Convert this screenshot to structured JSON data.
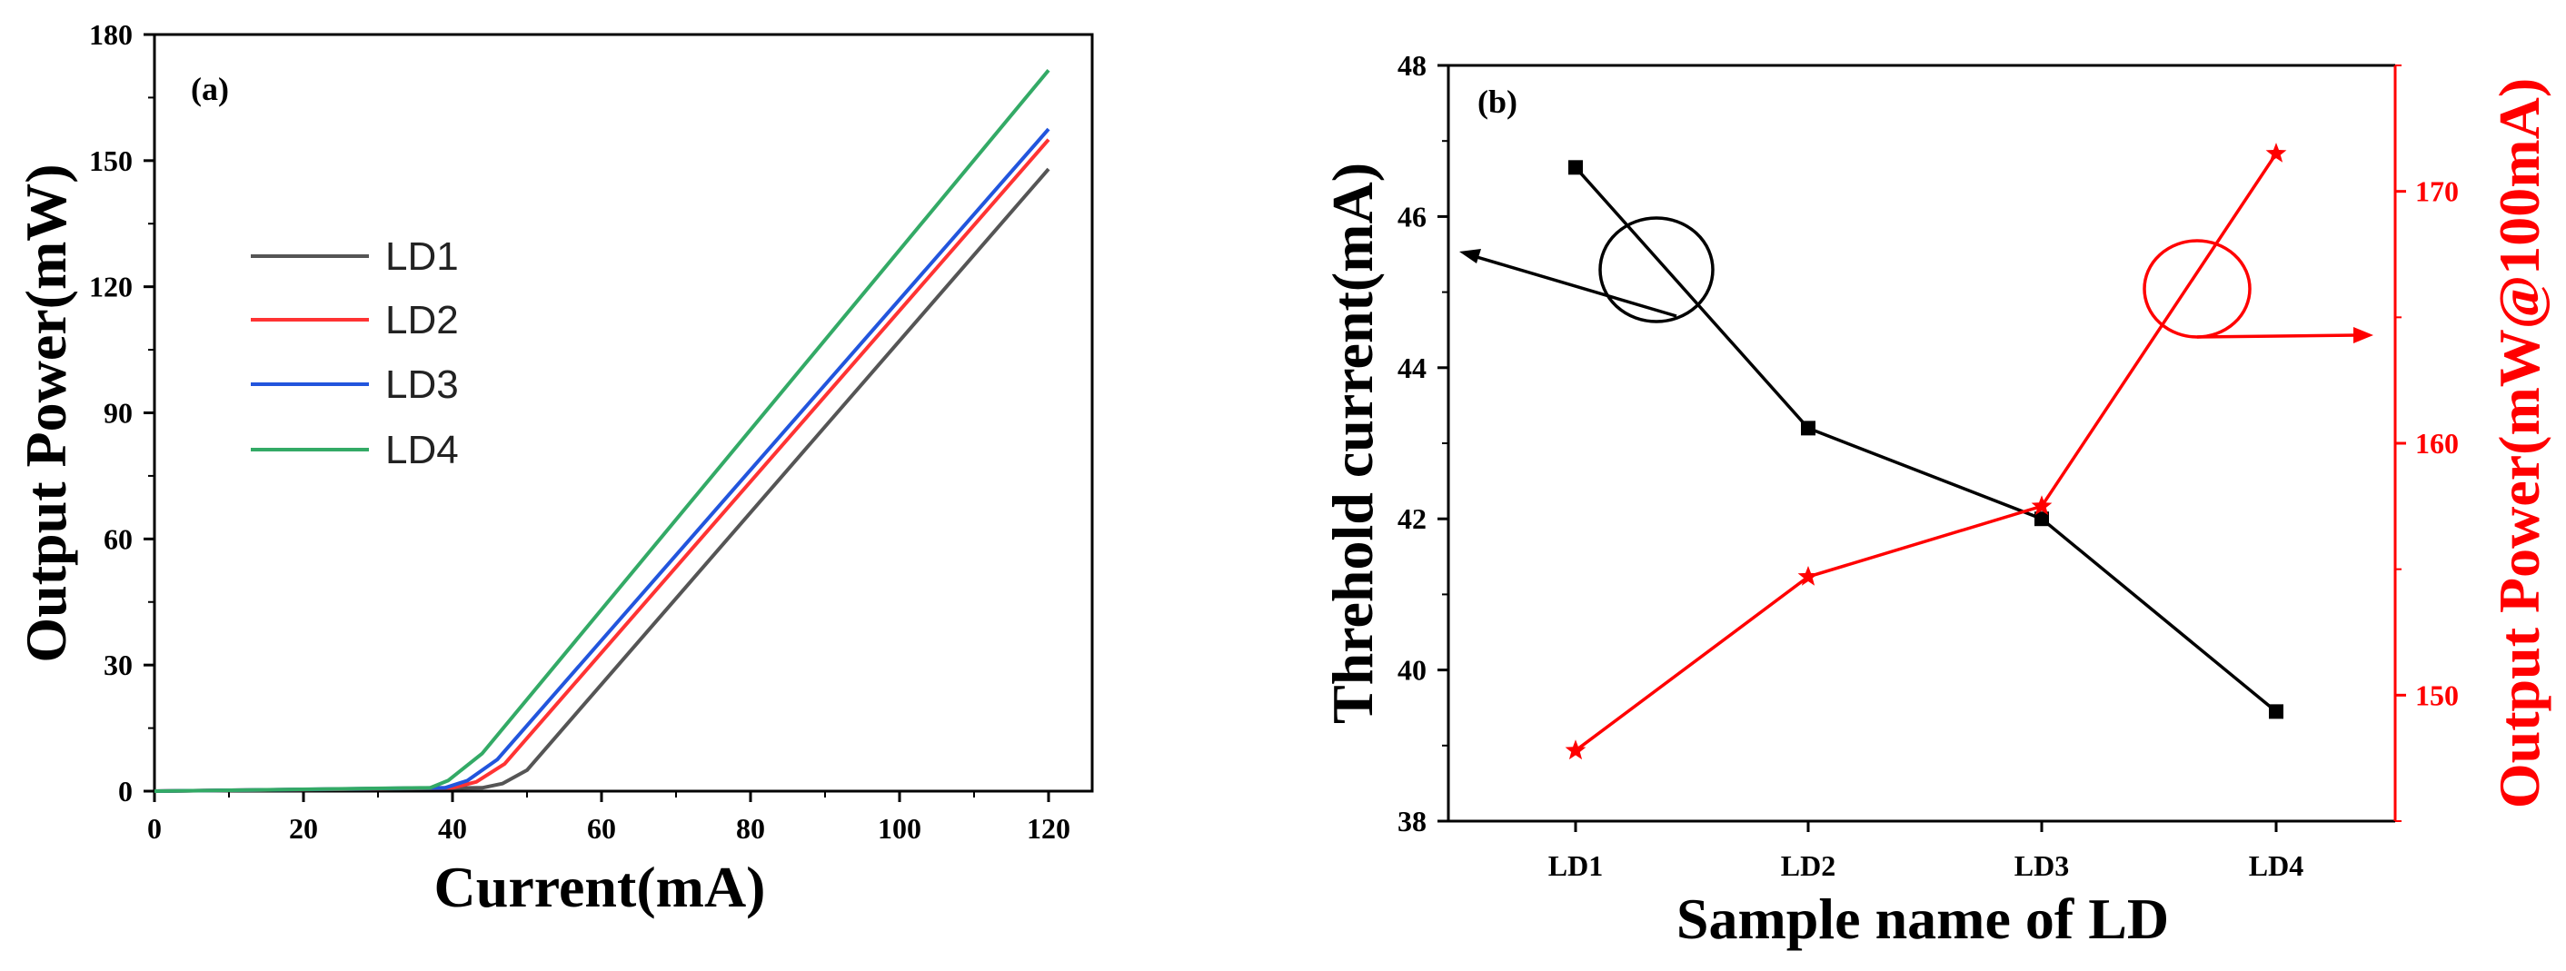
{
  "chart_data": [
    {
      "panel_label": "(a)",
      "type": "line",
      "xlabel": "Current(mA)",
      "ylabel": "Output Power(mW)",
      "xlim": [
        0,
        120
      ],
      "ylim": [
        0,
        180
      ],
      "xticks": [
        "0",
        "20",
        "40",
        "60",
        "80",
        "100",
        "120"
      ],
      "yticks": [
        "0",
        "30",
        "60",
        "90",
        "120",
        "150",
        "180"
      ],
      "legend_position": "center-left",
      "series": [
        {
          "name": "LD1",
          "color": "#555555",
          "threshold": 46.7,
          "x": [
            0,
            44,
            46.7,
            50,
            120
          ],
          "y": [
            0,
            0.8,
            1.8,
            5,
            148
          ]
        },
        {
          "name": "LD2",
          "color": "#ff3333",
          "threshold": 43.2,
          "x": [
            0,
            40,
            43.2,
            47,
            120
          ],
          "y": [
            0,
            0.8,
            2.2,
            6.5,
            155
          ]
        },
        {
          "name": "LD3",
          "color": "#2255dd",
          "threshold": 42.0,
          "x": [
            0,
            39,
            42.0,
            46,
            120
          ],
          "y": [
            0,
            0.8,
            2.5,
            7.5,
            157.5
          ]
        },
        {
          "name": "LD4",
          "color": "#33aa66",
          "threshold": 39.4,
          "x": [
            0,
            37,
            39.4,
            44,
            120
          ],
          "y": [
            0,
            0.8,
            2.5,
            9,
            171.5
          ]
        }
      ]
    },
    {
      "panel_label": "(b)",
      "type": "line",
      "xlabel": "Sample name of LD",
      "ylabel": "Threhold current(mA)",
      "ylabel_right": "Output Power(mW@100mA)",
      "categories": [
        "LD1",
        "LD2",
        "LD3",
        "LD4"
      ],
      "ylim": [
        38,
        48
      ],
      "yticks": [
        "38",
        "40",
        "42",
        "44",
        "46",
        "48"
      ],
      "ylim_right": [
        145,
        175
      ],
      "yticks_right": [
        "150",
        "160",
        "170"
      ],
      "series": [
        {
          "name": "Threshold current",
          "axis": "left",
          "color": "#000000",
          "marker": "square",
          "values": [
            46.65,
            43.2,
            42.0,
            39.45
          ]
        },
        {
          "name": "Output power @100mA",
          "axis": "right",
          "color": "#ff0000",
          "marker": "star",
          "values": [
            147.8,
            154.7,
            157.5,
            171.5
          ]
        }
      ]
    }
  ]
}
